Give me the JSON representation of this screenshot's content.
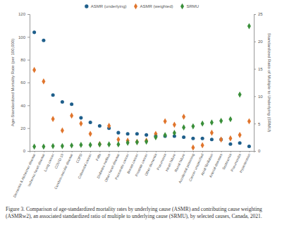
{
  "chart_data": {
    "type": "scatter",
    "caption": "Figure 3. Comparison of age-standardized mortality rates by underlying cause (ASMR) and contributing cause weighting (ASMRw2), an associated standardized ratio of multiple to underlying cause (SRMU), by selected causes, Canada, 2021.",
    "y_label": "Age-Standardized Mortality Rate (per 100,000)",
    "y2_label": "Standardized Ratio of Multiple to Underlying (SRMU)",
    "categories": [
      "Dementia & Alzheimer disease",
      "Ischemic heart disease",
      "Lung cancer",
      "COVID-19",
      "Cerebrovascular disease",
      "COPD",
      "Colorectal cancer",
      "Falls",
      "Diabetes mellitus",
      "Other heart disease",
      "Pancreatic cancer",
      "Breast cancer",
      "Prostate cancer",
      "Other dementia",
      "Pneumonia",
      "Heart failure",
      "Renal failure",
      "Accidental poisoning",
      "Cancer unspecified",
      "Atrial fibrillation",
      "Arterial diseases",
      "Septicemia",
      "Pneumonitis",
      "Hypertension"
    ],
    "series": [
      {
        "name": "ASMR (underlying)",
        "color": "#1f5f8b",
        "marker": "circle",
        "values": [
          104,
          97,
          49,
          43,
          41,
          29,
          25,
          22,
          20,
          16,
          15,
          15,
          14,
          13,
          13,
          13,
          12,
          11,
          11,
          10,
          10,
          6,
          7,
          4
        ]
      },
      {
        "name": "ASMR (weighted)",
        "color": "#e0752d",
        "marker": "diamond",
        "values": [
          71,
          61,
          28,
          18,
          31,
          24,
          15,
          6,
          22,
          10,
          9,
          8,
          9,
          15,
          26,
          23,
          30,
          3,
          5,
          16,
          10,
          11,
          14,
          26
        ]
      },
      {
        "name": "SRMU",
        "color": "#3a8f3a",
        "marker": "diamond",
        "axis": "y2",
        "values": [
          0.8,
          0.8,
          0.9,
          0.9,
          1.0,
          1.1,
          1.1,
          1.2,
          1.2,
          1.2,
          1.5,
          1.6,
          1.7,
          2.5,
          2.9,
          3.3,
          4.3,
          4.5,
          5.0,
          5.2,
          5.5,
          5.8,
          10.3,
          22.8
        ]
      }
    ],
    "ylim": [
      0,
      120
    ],
    "yticks": [
      0,
      20,
      40,
      60,
      80,
      100,
      120
    ],
    "y2lim": [
      0,
      25
    ],
    "y2ticks": [
      0,
      5,
      10,
      15,
      20,
      25
    ],
    "grid": false,
    "legend": "top"
  }
}
